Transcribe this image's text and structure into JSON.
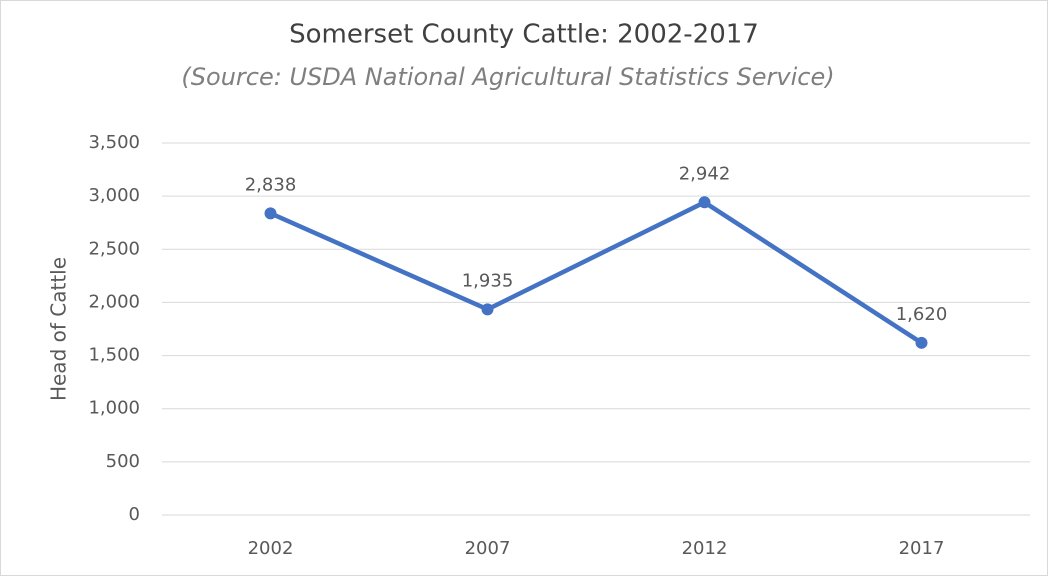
{
  "chart_data": {
    "type": "line",
    "title": "Somerset County Cattle: 2002-2017",
    "subtitle": "(Source: USDA National Agricultural Statistics Service)",
    "y_label": "Head of Cattle",
    "categories": [
      "2002",
      "2007",
      "2012",
      "2017"
    ],
    "values": [
      2838,
      1935,
      2942,
      1620
    ],
    "value_labels": [
      "2,838",
      "1,935",
      "2,942",
      "1,620"
    ],
    "color": "#4472c4",
    "ylim": [
      0,
      3500
    ],
    "yticks": [
      0,
      500,
      {
        "value": 1000,
        "label": "1,000"
      },
      {
        "value": 1500,
        "label": "1,500"
      },
      {
        "value": 2000,
        "label": "2,000"
      },
      {
        "value": 2500,
        "label": "2,500"
      },
      {
        "value": 3000,
        "label": "3,000"
      },
      {
        "value": 3500,
        "label": "3,500"
      }
    ],
    "grid": true
  }
}
